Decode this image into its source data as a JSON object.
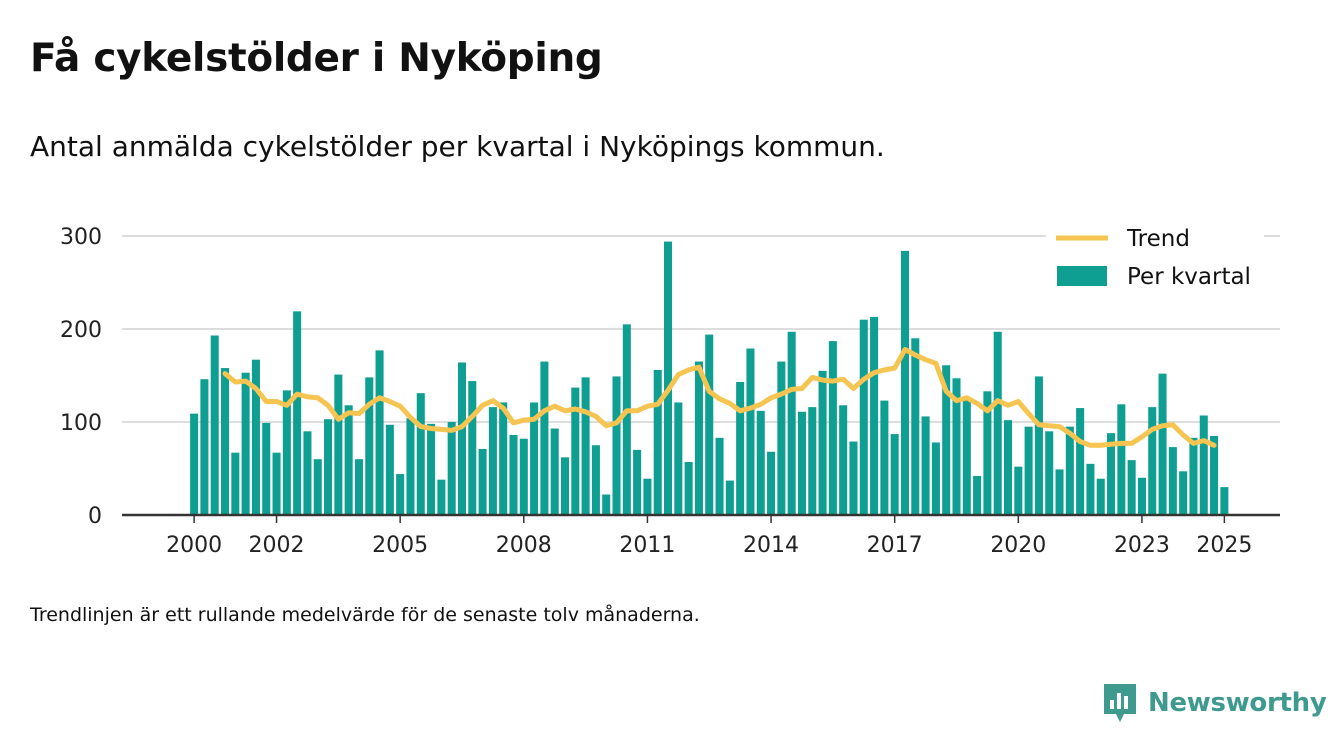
{
  "header": {
    "title": "Få cykelstölder i Nyköping",
    "subtitle": "Antal anmälda cykelstölder per kvartal i Nyköpings kommun."
  },
  "footer": {
    "note": "Trendlinjen är ett rullande medelvärde för de senaste tolv månaderna."
  },
  "logo": {
    "text": "Newsworthy",
    "color": "#3e9a8f"
  },
  "colors": {
    "bar": "#0e9e92",
    "trend": "#f5c451",
    "grid": "#dddddd",
    "axis": "#333333"
  },
  "chart_data": {
    "type": "bar",
    "title": "",
    "xlabel": "",
    "ylabel": "",
    "ylim": [
      0,
      300
    ],
    "yticks": [
      0,
      100,
      200,
      300
    ],
    "xlim": [
      1998.25,
      2026.35
    ],
    "xticks": [
      2000,
      2002,
      2005,
      2008,
      2011,
      2014,
      2017,
      2020,
      2023,
      2025
    ],
    "grid": true,
    "legend": {
      "position": "top-right",
      "entries": [
        {
          "label": "Trend",
          "kind": "line"
        },
        {
          "label": "Per kvartal",
          "kind": "bar"
        }
      ]
    },
    "series": [
      {
        "name": "Per kvartal",
        "type": "bar",
        "start": "2000 Q1",
        "values": [
          109,
          146,
          193,
          158,
          67,
          153,
          167,
          99,
          67,
          134,
          219,
          90,
          60,
          103,
          151,
          118,
          60,
          148,
          177,
          97,
          44,
          104,
          131,
          98,
          38,
          100,
          164,
          144,
          71,
          116,
          121,
          86,
          82,
          121,
          165,
          93,
          62,
          137,
          148,
          75,
          22,
          149,
          205,
          70,
          39,
          156,
          294,
          121,
          57,
          165,
          194,
          83,
          37,
          143,
          179,
          112,
          68,
          165,
          197,
          111,
          116,
          155,
          187,
          118,
          79,
          210,
          213,
          123,
          87,
          284,
          190,
          106,
          78,
          161,
          147,
          124,
          42,
          133,
          197,
          102,
          52,
          95,
          149,
          90,
          49,
          95,
          115,
          55,
          39,
          88,
          119,
          59,
          40,
          116,
          152,
          73,
          47,
          83,
          107,
          85,
          30
        ]
      },
      {
        "name": "Trend",
        "type": "line",
        "start": "2000 Q4",
        "values": [
          152,
          143,
          144,
          136,
          122,
          122,
          118,
          130,
          127,
          126,
          118,
          103,
          110,
          109,
          119,
          126,
          122,
          117,
          105,
          95,
          93,
          92,
          91,
          95,
          106,
          118,
          123,
          115,
          99,
          102,
          103,
          112,
          117,
          112,
          114,
          111,
          106,
          96,
          99,
          112,
          112,
          117,
          119,
          134,
          151,
          156,
          159,
          133,
          125,
          120,
          112,
          115,
          119,
          126,
          130,
          135,
          136,
          148,
          145,
          144,
          146,
          136,
          146,
          153,
          156,
          158,
          178,
          172,
          167,
          163,
          133,
          123,
          126,
          120,
          112,
          123,
          118,
          122,
          109,
          97,
          96,
          95,
          88,
          79,
          75,
          75,
          76,
          77,
          77,
          84,
          92,
          96,
          97,
          86,
          77,
          80,
          75
        ]
      }
    ]
  }
}
